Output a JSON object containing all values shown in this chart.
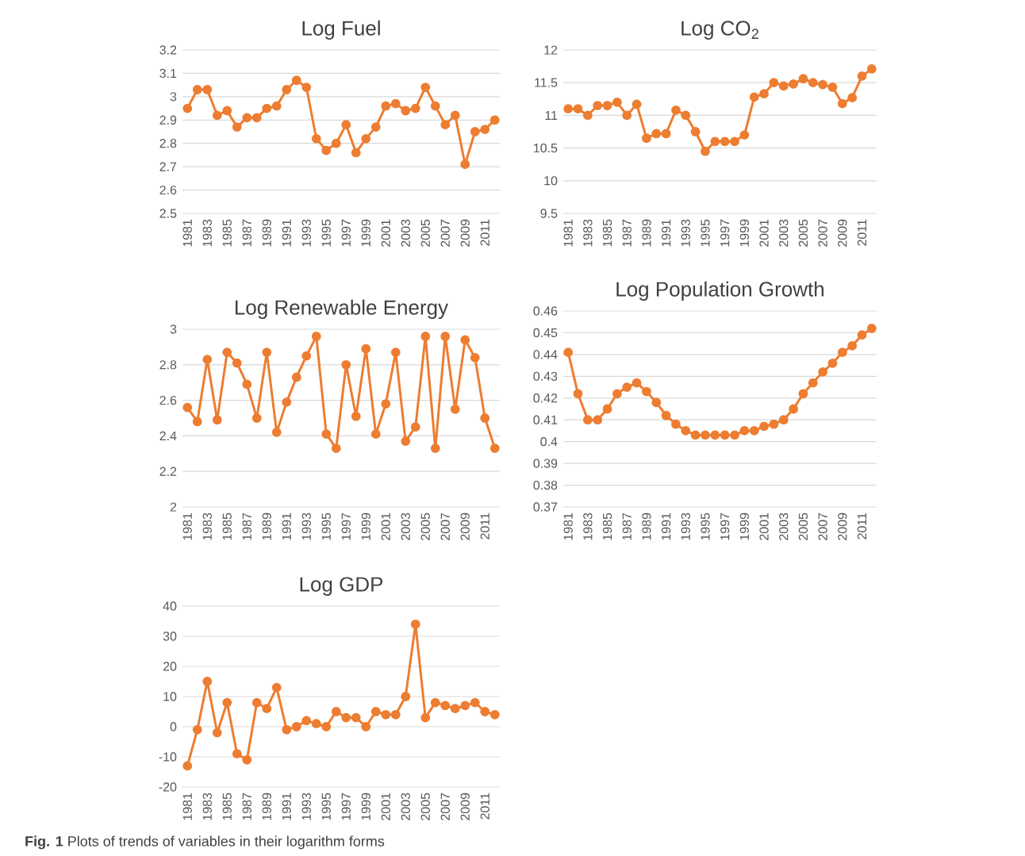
{
  "chart_data": [
    {
      "type": "line",
      "title": "Log Fuel",
      "categories": [
        "1981",
        null,
        "1983",
        null,
        "1985",
        null,
        "1987",
        null,
        "1989",
        null,
        "1991",
        null,
        "1993",
        null,
        "1995",
        null,
        "1997",
        null,
        "1999",
        null,
        "2001",
        null,
        "2003",
        null,
        "2005",
        null,
        "2007",
        null,
        "2009",
        null,
        "2011",
        null
      ],
      "values": [
        2.95,
        3.03,
        3.03,
        2.92,
        2.94,
        2.87,
        2.91,
        2.91,
        2.95,
        2.96,
        3.03,
        3.07,
        3.04,
        2.82,
        2.77,
        2.8,
        2.88,
        2.76,
        2.82,
        2.87,
        2.96,
        2.97,
        2.94,
        2.95,
        3.04,
        2.96,
        2.88,
        2.92,
        2.71,
        2.85,
        2.86,
        2.9
      ],
      "color": "#ed7d31",
      "ylim": [
        2.5,
        3.2
      ],
      "yticks": [
        2.5,
        2.6,
        2.7,
        2.8,
        2.9,
        3,
        3.1,
        3.2
      ],
      "grid": "y",
      "marker": "circle",
      "line_style": "solid"
    },
    {
      "type": "line",
      "title": "Log CO$_{2}$",
      "categories": [
        "1981",
        null,
        "1983",
        null,
        "1985",
        null,
        "1987",
        null,
        "1989",
        null,
        "1991",
        null,
        "1993",
        null,
        "1995",
        null,
        "1997",
        null,
        "1999",
        null,
        "2001",
        null,
        "2003",
        null,
        "2005",
        null,
        "2007",
        null,
        "2009",
        null,
        "2011",
        null
      ],
      "values": [
        11.1,
        11.1,
        11.0,
        11.15,
        11.15,
        11.2,
        11.0,
        11.17,
        10.65,
        10.72,
        10.72,
        11.08,
        11.0,
        10.75,
        10.45,
        10.6,
        10.6,
        10.6,
        10.7,
        11.28,
        11.33,
        11.5,
        11.45,
        11.48,
        11.56,
        11.5,
        11.47,
        11.43,
        11.18,
        11.27,
        11.6,
        11.71
      ],
      "color": "#ed7d31",
      "ylim": [
        9.5,
        12
      ],
      "yticks": [
        9.5,
        10,
        10.5,
        11,
        11.5,
        12
      ],
      "grid": "y",
      "marker": "circle",
      "line_style": "solid"
    },
    {
      "type": "line",
      "title": "Log Renewable Energy",
      "categories": [
        "1981",
        null,
        "1983",
        null,
        "1985",
        null,
        "1987",
        null,
        "1989",
        null,
        "1991",
        null,
        "1993",
        null,
        "1995",
        null,
        "1997",
        null,
        "1999",
        null,
        "2001",
        null,
        "2003",
        null,
        "2005",
        null,
        "2007",
        null,
        "2009",
        null,
        "2011",
        null
      ],
      "values": [
        2.56,
        2.48,
        2.83,
        2.49,
        2.87,
        2.81,
        2.69,
        2.5,
        2.87,
        2.42,
        2.59,
        2.73,
        2.85,
        2.96,
        2.41,
        2.33,
        2.8,
        2.51,
        2.89,
        2.41,
        2.58,
        2.87,
        2.37,
        2.45,
        2.96,
        2.33,
        2.96,
        2.55,
        2.94,
        2.84,
        2.5,
        2.33
      ],
      "color": "#ed7d31",
      "ylim": [
        2,
        3
      ],
      "yticks": [
        2,
        2.2,
        2.4,
        2.6,
        2.8,
        3
      ],
      "grid": "y",
      "marker": "circle",
      "line_style": "solid"
    },
    {
      "type": "line",
      "title": "Log Population Growth",
      "categories": [
        "1981",
        null,
        "1983",
        null,
        "1985",
        null,
        "1987",
        null,
        "1989",
        null,
        "1991",
        null,
        "1993",
        null,
        "1995",
        null,
        "1997",
        null,
        "1999",
        null,
        "2001",
        null,
        "2003",
        null,
        "2005",
        null,
        "2007",
        null,
        "2009",
        null,
        "2011",
        null
      ],
      "values": [
        0.441,
        0.422,
        0.41,
        0.41,
        0.415,
        0.422,
        0.425,
        0.427,
        0.423,
        0.418,
        0.412,
        0.408,
        0.405,
        0.403,
        0.403,
        0.403,
        0.403,
        0.403,
        0.405,
        0.405,
        0.407,
        0.408,
        0.41,
        0.415,
        0.422,
        0.427,
        0.432,
        0.436,
        0.441,
        0.444,
        0.449,
        0.452
      ],
      "color": "#ed7d31",
      "ylim": [
        0.37,
        0.46
      ],
      "yticks": [
        0.37,
        0.38,
        0.39,
        0.4,
        0.41,
        0.42,
        0.43,
        0.44,
        0.45,
        0.46
      ],
      "grid": "y",
      "marker": "circle",
      "line_style": "solid"
    },
    {
      "type": "line",
      "title": "Log GDP",
      "categories": [
        "1981",
        null,
        "1983",
        null,
        "1985",
        null,
        "1987",
        null,
        "1989",
        null,
        "1991",
        null,
        "1993",
        null,
        "1995",
        null,
        "1997",
        null,
        "1999",
        null,
        "2001",
        null,
        "2003",
        null,
        "2005",
        null,
        "2007",
        null,
        "2009",
        null,
        "2011",
        null
      ],
      "values": [
        -13,
        -1,
        15,
        -2,
        8,
        -9,
        -11,
        8,
        6,
        13,
        -1,
        0,
        2,
        1,
        0,
        5,
        3,
        3,
        0,
        5,
        4,
        4,
        10,
        34,
        3,
        8,
        7,
        6,
        7,
        8,
        5,
        4
      ],
      "color": "#ed7d31",
      "ylim": [
        -20,
        40
      ],
      "yticks": [
        -20,
        -10,
        0,
        10,
        20,
        30,
        40
      ],
      "grid": "y",
      "marker": "circle",
      "line_style": "solid",
      "annotations": [
        "**Fig. 1** Plots of trends of variables in their logarithm forms"
      ]
    }
  ]
}
